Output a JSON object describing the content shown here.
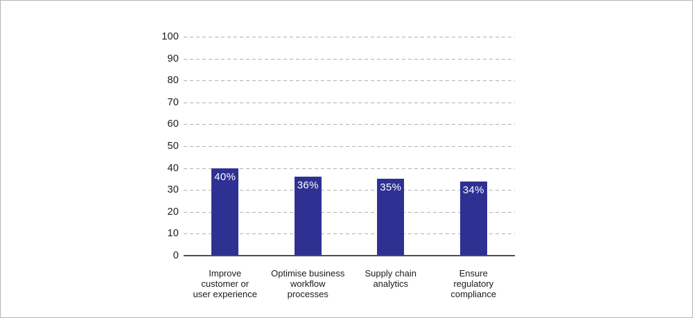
{
  "chart_data": {
    "type": "bar",
    "title": "",
    "categories": [
      "Improve customer or user experience",
      "Optimise business workflow processes",
      "Supply chain analytics",
      "Ensure regulatory compliance"
    ],
    "category_lines": [
      [
        "Improve",
        "customer or",
        "user experience"
      ],
      [
        "Optimise business",
        "workflow",
        "processes"
      ],
      [
        "Supply chain",
        "analytics"
      ],
      [
        "Ensure",
        "regulatory",
        "compliance"
      ]
    ],
    "values": [
      40,
      36,
      35,
      34
    ],
    "bar_labels": [
      "40%",
      "36%",
      "35%",
      "34%"
    ],
    "yticks": [
      100,
      90,
      80,
      70,
      60,
      50,
      40,
      30,
      20,
      10,
      0
    ],
    "ylim": [
      0,
      100
    ],
    "grid": "horizontal-dashed",
    "legend": "none"
  },
  "colors": {
    "bar": "#2E3192",
    "bar_label": "#ffffff",
    "gridline": "#b0b0b0",
    "axis_line": "#4d4d4d",
    "tick_text": "#1a1a1a",
    "frame_border": "#b5b5b5",
    "background": "#ffffff"
  }
}
